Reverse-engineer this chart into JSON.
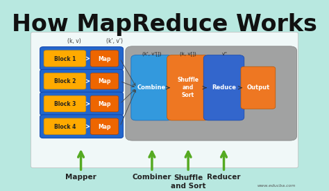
{
  "title": "How MapReduce Works",
  "title_fontsize": 24,
  "title_color": "#111111",
  "bg_color": "#b8e8e0",
  "diagram_bg": "#f0f8f8",
  "gray_box_color": "#999999",
  "blue_row_color": "#2266cc",
  "yellow_block_color": "#ffaa00",
  "orange_map_color": "#ee6600",
  "blue_combine_color": "#3399dd",
  "orange_shuffle_color": "#ee7722",
  "blue_reduce_color": "#3366cc",
  "orange_output_color": "#ee7722",
  "green_arrow_color": "#55aa22",
  "blocks": [
    "Block 1",
    "Block 2",
    "Block 3",
    "Block 4"
  ],
  "ann_kv": "(k, v)",
  "ann_kv2": "(k', v')",
  "ann_kv3": "(k', v'[])",
  "ann_kv4": "(k, v[])",
  "ann_v": "v''",
  "watermark": "www.educba.com"
}
